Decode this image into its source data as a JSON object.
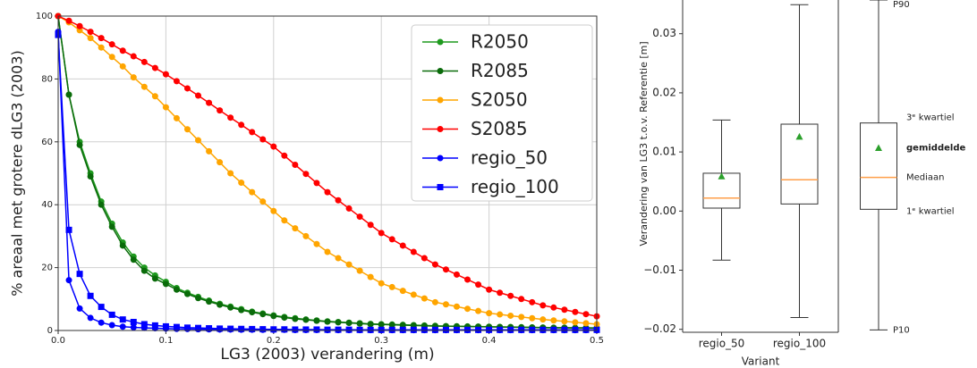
{
  "chart_data": [
    {
      "type": "line",
      "ylabel": "% areaal met grotere dLG3 (2003)",
      "xlabel": "LG3 (2003) verandering (m)",
      "xlim": [
        0,
        0.5
      ],
      "ylim": [
        0,
        100
      ],
      "xticks": [
        {
          "value": 0,
          "label": "0.0"
        },
        {
          "value": 0.1,
          "label": "0.1"
        },
        {
          "value": 0.2,
          "label": "0.2"
        },
        {
          "value": 0.3,
          "label": "0.3"
        },
        {
          "value": 0.4,
          "label": "0.4"
        },
        {
          "value": 0.5,
          "label": "0.5"
        }
      ],
      "yticks": [
        0,
        20,
        40,
        60,
        80,
        100
      ],
      "grid": true,
      "legend": "upper right",
      "x": [
        0,
        0.01,
        0.02,
        0.03,
        0.04,
        0.05,
        0.06,
        0.07,
        0.08,
        0.09,
        0.1,
        0.11,
        0.12,
        0.13,
        0.14,
        0.15,
        0.16,
        0.17,
        0.18,
        0.19,
        0.2,
        0.21,
        0.22,
        0.23,
        0.24,
        0.25,
        0.26,
        0.27,
        0.28,
        0.29,
        0.3,
        0.31,
        0.32,
        0.33,
        0.34,
        0.35,
        0.36,
        0.37,
        0.38,
        0.39,
        0.4,
        0.41,
        0.42,
        0.43,
        0.44,
        0.45,
        0.46,
        0.47,
        0.48,
        0.49,
        0.5
      ],
      "series": [
        {
          "name": "R2050",
          "color": "#1f9a1f",
          "marker": "circle",
          "values": [
            100,
            75,
            60,
            50,
            41,
            34,
            28,
            23.5,
            20,
            17.5,
            15.5,
            13.5,
            12,
            10.7,
            9.5,
            8.5,
            7.6,
            6.8,
            6,
            5.4,
            4.8,
            4.3,
            3.9,
            3.5,
            3.2,
            2.9,
            2.7,
            2.5,
            2.3,
            2.1,
            2,
            1.9,
            1.8,
            1.7,
            1.6,
            1.5,
            1.4,
            1.35,
            1.3,
            1.25,
            1.2,
            1.15,
            1.1,
            1.05,
            1,
            0.95,
            0.9,
            0.9,
            0.85,
            0.85,
            0.8
          ]
        },
        {
          "name": "R2085",
          "color": "#0a6b0a",
          "marker": "circle",
          "values": [
            100,
            75,
            59,
            49,
            40,
            33,
            27,
            22.5,
            19,
            16.5,
            14.8,
            13,
            11.6,
            10.3,
            9.2,
            8.2,
            7.3,
            6.5,
            5.8,
            5.2,
            4.6,
            4.1,
            3.7,
            3.4,
            3.1,
            2.8,
            2.6,
            2.4,
            2.2,
            2,
            1.9,
            1.8,
            1.7,
            1.6,
            1.5,
            1.4,
            1.35,
            1.3,
            1.25,
            1.2,
            1.15,
            1.1,
            1.05,
            1,
            0.95,
            0.9,
            0.85,
            0.85,
            0.8,
            0.8,
            0.75
          ]
        },
        {
          "name": "S2050",
          "color": "#ffa500",
          "marker": "circle",
          "values": [
            100,
            98,
            95.5,
            93,
            90,
            87,
            84,
            80.5,
            77.5,
            74.5,
            71,
            67.5,
            64,
            60.5,
            57,
            53.5,
            50,
            47,
            44,
            41,
            38,
            35,
            32.5,
            30,
            27.5,
            25,
            23,
            21,
            19,
            17,
            15,
            13.8,
            12.6,
            11.4,
            10.2,
            9,
            8.3,
            7.6,
            6.9,
            6.2,
            5.5,
            5.1,
            4.7,
            4.3,
            3.9,
            3.5,
            3.2,
            2.9,
            2.6,
            2.3,
            2
          ]
        },
        {
          "name": "S2085",
          "color": "#ff0000",
          "marker": "circle",
          "values": [
            100,
            98.5,
            96.8,
            95,
            93,
            91,
            89,
            87.2,
            85.4,
            83.5,
            81.5,
            79.3,
            77,
            74.7,
            72.4,
            70,
            67.7,
            65.4,
            63.1,
            60.8,
            58.5,
            55.6,
            52.7,
            49.8,
            46.9,
            44,
            41.4,
            38.8,
            36.2,
            33.6,
            31,
            29,
            27,
            25,
            23,
            21,
            19.4,
            17.8,
            16.2,
            14.6,
            13,
            12,
            11,
            10,
            9,
            8,
            7.3,
            6.6,
            5.9,
            5.2,
            4.5
          ]
        },
        {
          "name": "regio_50",
          "color": "#0000ff",
          "marker": "circle",
          "values": [
            95,
            16,
            7,
            4,
            2.5,
            1.7,
            1.2,
            1,
            0.8,
            0.7,
            0.6,
            0.5,
            0.45,
            0.4,
            0.35,
            0.3,
            0.3,
            0.25,
            0.25,
            0.2,
            0.2,
            0.2,
            0.15,
            0.15,
            0.15,
            0.1,
            0.1,
            0.1,
            0.1,
            0.1,
            0.1,
            0.1,
            0.1,
            0.1,
            0.1,
            0.1,
            0.1,
            0.1,
            0.1,
            0.1,
            0.1,
            0.1,
            0.1,
            0.1,
            0.1,
            0.1,
            0.1,
            0.1,
            0.1,
            0.1,
            0.1
          ]
        },
        {
          "name": "regio_100",
          "color": "#0000ff",
          "marker": "square",
          "values": [
            94,
            32,
            18,
            11,
            7.5,
            5,
            3.5,
            2.7,
            2,
            1.6,
            1.3,
            1.1,
            0.9,
            0.8,
            0.7,
            0.6,
            0.55,
            0.5,
            0.45,
            0.4,
            0.35,
            0.35,
            0.3,
            0.3,
            0.3,
            0.25,
            0.25,
            0.25,
            0.2,
            0.2,
            0.2,
            0.2,
            0.2,
            0.2,
            0.2,
            0.2,
            0.2,
            0.2,
            0.2,
            0.2,
            0.2,
            0.2,
            0.2,
            0.2,
            0.2,
            0.2,
            0.2,
            0.2,
            0.2,
            0.2,
            0.2
          ]
        }
      ]
    },
    {
      "type": "box",
      "ylabel": "Verandering van LG3 t.o.v. Referentie [m]",
      "xlabel": "Variant",
      "ylim": [
        -0.0205,
        0.0357
      ],
      "yticks": [
        {
          "value": -0.02,
          "label": "−0.02"
        },
        {
          "value": -0.01,
          "label": "−0.01"
        },
        {
          "value": 0,
          "label": "0.00"
        },
        {
          "value": 0.01,
          "label": "0.01"
        },
        {
          "value": 0.02,
          "label": "0.02"
        },
        {
          "value": 0.03,
          "label": "0.03"
        }
      ],
      "categories": [
        "regio_50",
        "regio_100"
      ],
      "box_color": "#333333",
      "median_color": "#ff9f4a",
      "mean_color": "#2ca02c",
      "boxes": [
        {
          "whislo": -0.0083,
          "q1": 0.0005,
          "med": 0.0022,
          "q3": 0.0064,
          "whishi": 0.0154,
          "mean": 0.0059
        },
        {
          "whislo": -0.018,
          "q1": 0.0012,
          "med": 0.0053,
          "q3": 0.0147,
          "whishi": 0.0349,
          "mean": 0.0126
        }
      ],
      "key": {
        "values": {
          "whislo": -0.0201,
          "q1": 0.0003,
          "med": 0.0057,
          "mean": 0.0107,
          "q3": 0.0149,
          "whishi": 0.0357
        },
        "labels": {
          "whishi": "P90",
          "q3": "3ᵉ kwartiel",
          "mean": "gemiddelde",
          "med": "Mediaan",
          "q1": "1ᵉ kwartiel",
          "whislo": "P10"
        }
      }
    }
  ]
}
